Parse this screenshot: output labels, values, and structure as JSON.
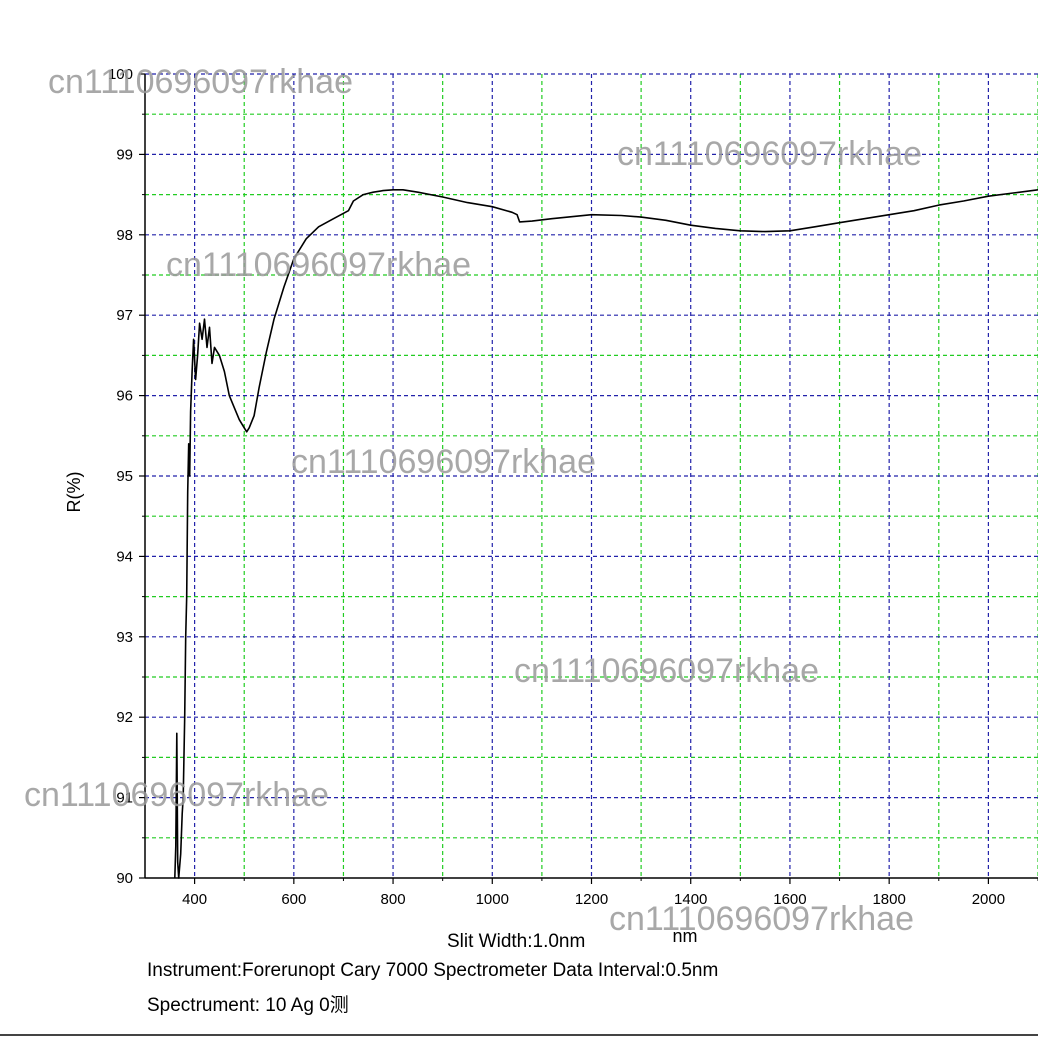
{
  "chart_data": {
    "type": "line",
    "xlabel": "nm",
    "ylabel": "R(%)",
    "xlim": [
      300,
      2100
    ],
    "ylim": [
      90,
      100
    ],
    "x_ticks": [
      400,
      600,
      800,
      1000,
      1200,
      1400,
      1600,
      1800,
      2000
    ],
    "y_ticks": [
      90,
      91,
      92,
      93,
      94,
      95,
      96,
      97,
      98,
      99,
      100
    ],
    "grid": true,
    "major_grid_color": "#2222aa",
    "minor_grid_color": "#22cc22",
    "line_color": "#000000",
    "series": [
      {
        "x": [
          360,
          362,
          364,
          366,
          368,
          372,
          375,
          377,
          380,
          382,
          384,
          386,
          388,
          390,
          392,
          395,
          398,
          402,
          406,
          410,
          415,
          420,
          425,
          430,
          435,
          440,
          450,
          460,
          470,
          480,
          490,
          500,
          505,
          510,
          520,
          530,
          545,
          560,
          580,
          600,
          625,
          650,
          680,
          710,
          720,
          740,
          760,
          780,
          800,
          820,
          850,
          900,
          950,
          1000,
          1040,
          1050,
          1055,
          1080,
          1120,
          1200,
          1260,
          1300,
          1350,
          1400,
          1450,
          1500,
          1550,
          1600,
          1650,
          1700,
          1750,
          1800,
          1850,
          1900,
          1950,
          2000,
          2050,
          2100
        ],
        "y": [
          90.0,
          90.4,
          91.8,
          90.2,
          90.0,
          90.3,
          90.8,
          91.0,
          92.0,
          93.0,
          93.5,
          94.8,
          95.4,
          95.0,
          95.8,
          96.3,
          96.7,
          96.2,
          96.5,
          96.9,
          96.7,
          96.95,
          96.6,
          96.85,
          96.4,
          96.6,
          96.5,
          96.3,
          96.0,
          95.85,
          95.7,
          95.6,
          95.55,
          95.6,
          95.75,
          96.1,
          96.55,
          96.95,
          97.35,
          97.7,
          97.95,
          98.1,
          98.2,
          98.3,
          98.42,
          98.5,
          98.53,
          98.55,
          98.56,
          98.56,
          98.53,
          98.47,
          98.4,
          98.35,
          98.28,
          98.25,
          98.16,
          98.17,
          98.2,
          98.25,
          98.24,
          98.22,
          98.18,
          98.12,
          98.08,
          98.05,
          98.04,
          98.05,
          98.1,
          98.15,
          98.2,
          98.25,
          98.3,
          98.37,
          98.42,
          98.48,
          98.52,
          98.56
        ]
      }
    ]
  },
  "watermark": {
    "text": "cn1110696097rkhae",
    "color": "#9a9a9a"
  },
  "info": {
    "slit_width": "Slit Width:1.0nm",
    "instrument": "Instrument:Forerunopt Cary 7000 Spectrometer Data Interval:0.5nm",
    "spectrument": "Spectrument:  10  Ag 0测"
  }
}
